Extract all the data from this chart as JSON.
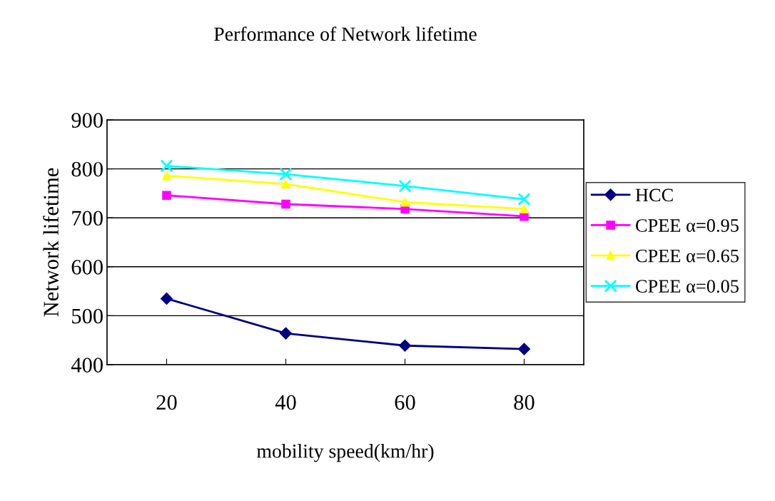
{
  "chart_data": {
    "type": "line",
    "title": "Performance of Network lifetime",
    "xlabel": "mobility speed(km/hr)",
    "ylabel": "Network lifetime",
    "categories": [
      "20",
      "40",
      "60",
      "80"
    ],
    "series": [
      {
        "name": "HCC",
        "color": "#000080",
        "marker": "diamond",
        "values": [
          535,
          464,
          439,
          432
        ]
      },
      {
        "name": "CPEE α=0.95",
        "color": "#ff00ff",
        "marker": "square",
        "values": [
          746,
          728,
          718,
          703
        ]
      },
      {
        "name": "CPEE α=0.65",
        "color": "#ffff00",
        "marker": "triangle",
        "values": [
          786,
          769,
          732,
          718
        ]
      },
      {
        "name": "CPEE α=0.05",
        "color": "#00ffff",
        "marker": "cross",
        "values": [
          806,
          789,
          765,
          738
        ]
      }
    ],
    "ylim": [
      400,
      900
    ],
    "yticks": [
      400,
      500,
      600,
      700,
      800,
      900
    ],
    "grid": "y",
    "legend": "right",
    "line_style": "solid"
  }
}
